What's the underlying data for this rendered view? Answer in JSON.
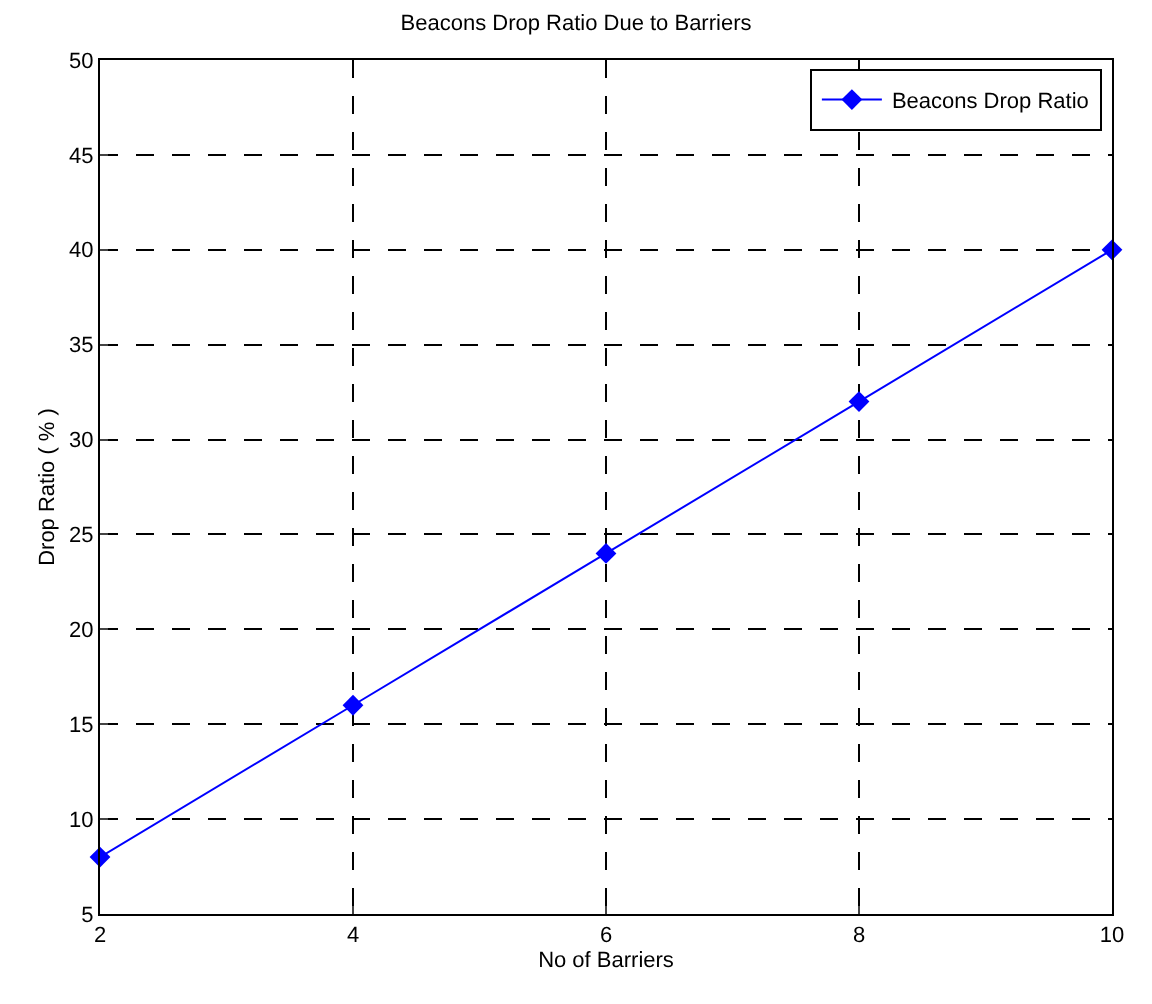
{
  "chart_data": {
    "type": "line",
    "title": "Beacons Drop Ratio Due to Barriers",
    "xlabel": "No of Barriers",
    "ylabel": "Drop Ratio ( % )",
    "x": [
      2,
      4,
      6,
      8,
      10
    ],
    "series": [
      {
        "name": "Beacons Drop Ratio",
        "color": "#0000ff",
        "values": [
          8,
          16,
          24,
          32,
          40
        ]
      }
    ],
    "xlim": [
      2,
      10
    ],
    "xticks": [
      2,
      4,
      6,
      8,
      10
    ],
    "ylim": [
      5,
      50
    ],
    "yticks": [
      5,
      10,
      15,
      20,
      25,
      30,
      35,
      40,
      45,
      50
    ],
    "grid": true,
    "legend": "top right",
    "marker": "diamond",
    "line_style": "solid"
  }
}
